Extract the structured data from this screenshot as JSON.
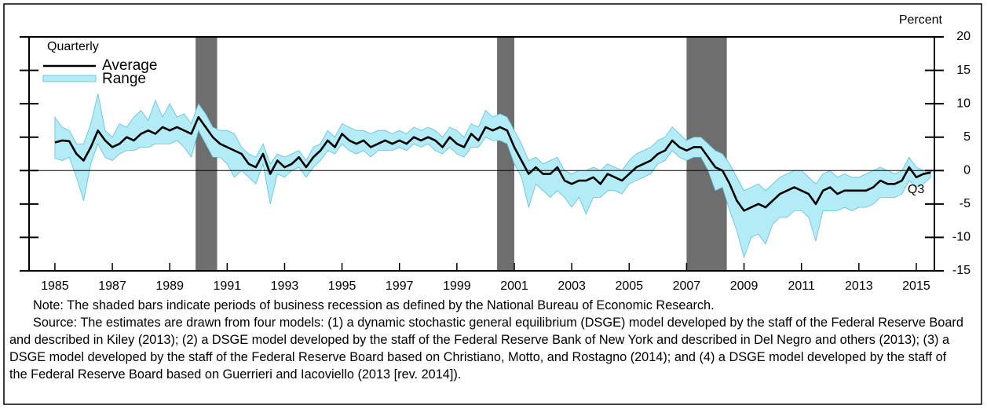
{
  "chart_data": {
    "type": "band-line",
    "y_axis_label": "Percent",
    "legend_title": "Quarterly",
    "annotation": "Q3",
    "x": [
      1985,
      1985.25,
      1985.5,
      1985.75,
      1986,
      1986.25,
      1986.5,
      1986.75,
      1987,
      1987.25,
      1987.5,
      1987.75,
      1988,
      1988.25,
      1988.5,
      1988.75,
      1989,
      1989.25,
      1989.5,
      1989.75,
      1990,
      1990.25,
      1990.5,
      1990.75,
      1991,
      1991.25,
      1991.5,
      1991.75,
      1992,
      1992.25,
      1992.5,
      1992.75,
      1993,
      1993.25,
      1993.5,
      1993.75,
      1994,
      1994.25,
      1994.5,
      1994.75,
      1995,
      1995.25,
      1995.5,
      1995.75,
      1996,
      1996.25,
      1996.5,
      1996.75,
      1997,
      1997.25,
      1997.5,
      1997.75,
      1998,
      1998.25,
      1998.5,
      1998.75,
      1999,
      1999.25,
      1999.5,
      1999.75,
      2000,
      2000.25,
      2000.5,
      2000.75,
      2001,
      2001.25,
      2001.5,
      2001.75,
      2002,
      2002.25,
      2002.5,
      2002.75,
      2003,
      2003.25,
      2003.5,
      2003.75,
      2004,
      2004.25,
      2004.5,
      2004.75,
      2005,
      2005.25,
      2005.5,
      2005.75,
      2006,
      2006.25,
      2006.5,
      2006.75,
      2007,
      2007.25,
      2007.5,
      2007.75,
      2008,
      2008.25,
      2008.5,
      2008.75,
      2009,
      2009.25,
      2009.5,
      2009.75,
      2010,
      2010.25,
      2010.5,
      2010.75,
      2011,
      2011.25,
      2011.5,
      2011.75,
      2012,
      2012.25,
      2012.5,
      2012.75,
      2013,
      2013.25,
      2013.5,
      2013.75,
      2014,
      2014.25,
      2014.5,
      2014.75,
      2015,
      2015.25,
      2015.5
    ],
    "series": [
      {
        "name": "Average",
        "color": "#000000",
        "values": [
          4.2,
          4.5,
          4.4,
          2.5,
          1.5,
          3.5,
          6,
          4.5,
          3.5,
          4,
          5,
          4.5,
          5.5,
          6,
          5.5,
          6.5,
          6,
          6.5,
          6,
          5.5,
          8,
          6.5,
          5,
          4,
          3.5,
          3,
          2.5,
          1,
          0.5,
          2.5,
          -0.5,
          1.5,
          0.5,
          1,
          2,
          0.5,
          2,
          3,
          4.5,
          3.5,
          5.5,
          4.5,
          4,
          4.5,
          3.5,
          4,
          4.5,
          4,
          4.5,
          4,
          5,
          4.5,
          5,
          4.5,
          3.5,
          5,
          4,
          3.5,
          5.5,
          4.5,
          6.5,
          6,
          6.5,
          6,
          3.5,
          1.5,
          -0.5,
          0.5,
          -0.5,
          -0.5,
          0.5,
          -1.5,
          -2,
          -1.5,
          -1.5,
          -1,
          -2,
          -0.5,
          -1,
          -1.5,
          -0.5,
          0.5,
          1,
          1.5,
          2.5,
          3,
          4.5,
          3.5,
          3,
          3.5,
          3.5,
          2,
          0.5,
          0,
          -2,
          -4.5,
          -6,
          -5.5,
          -5,
          -5.5,
          -4.5,
          -3.5,
          -3,
          -2.5,
          -3,
          -3.5,
          -5,
          -3,
          -2.5,
          -3.5,
          -3,
          -3,
          -3,
          -3,
          -2.5,
          -1.5,
          -2,
          -2,
          -1.5,
          0.5,
          -1,
          -0.5,
          -0.3
        ]
      },
      {
        "name": "Range",
        "color": "#b3ebf7",
        "high": [
          8,
          6.5,
          6,
          4,
          4,
          7,
          11.5,
          6,
          5,
          7,
          6.5,
          8,
          9,
          7.5,
          10.5,
          8,
          10,
          8,
          8.5,
          7,
          10,
          8.5,
          6.5,
          6,
          6,
          5.5,
          3.5,
          2.5,
          2,
          4,
          1,
          2.5,
          2,
          2.5,
          3,
          1.5,
          3.5,
          4,
          6,
          5,
          7,
          6.5,
          6,
          6,
          5.5,
          6,
          6,
          5.5,
          6,
          5.5,
          6.5,
          6,
          6.5,
          6,
          5,
          6.5,
          6,
          5,
          7,
          6.5,
          9,
          8,
          8.5,
          8,
          6,
          4,
          1.5,
          2,
          1,
          1.5,
          2,
          0,
          -0.5,
          0,
          0,
          0.5,
          0,
          1,
          0.5,
          0,
          1.5,
          2.5,
          3,
          3.5,
          4.5,
          5,
          6.5,
          5.5,
          4.5,
          5,
          5,
          4,
          3,
          2.5,
          1,
          -1,
          -3,
          -2.5,
          -2,
          -3,
          -2,
          -1,
          -0.5,
          0,
          0,
          -1,
          -2,
          -0.5,
          0,
          -1,
          -0.5,
          -1,
          -1,
          -0.5,
          0,
          0.5,
          0,
          -0.5,
          0,
          2,
          0.5,
          0,
          0
        ],
        "low": [
          1.8,
          1.5,
          2,
          -1,
          -4.5,
          1,
          4,
          2,
          1.5,
          2.5,
          3,
          3,
          3.5,
          3.5,
          4,
          4,
          4,
          4.5,
          3.5,
          2,
          6,
          4,
          2,
          2,
          1,
          -1,
          0,
          -1,
          -2,
          1,
          -5,
          -0.5,
          -1,
          0,
          0.5,
          -1,
          0.5,
          1.5,
          3,
          2.5,
          4,
          3,
          2.5,
          3,
          2,
          3,
          3,
          3,
          3.5,
          3,
          4,
          3.5,
          4,
          3,
          2.5,
          3.5,
          2.5,
          2,
          3.5,
          3.5,
          5,
          4.5,
          4.5,
          4,
          1,
          -1,
          -5.5,
          -2,
          -3,
          -4,
          -3,
          -4,
          -5.5,
          -4,
          -6.5,
          -4,
          -4,
          -3,
          -3,
          -3.5,
          -2,
          -1.5,
          -1,
          -0.5,
          1,
          1.5,
          3,
          2,
          1.5,
          2,
          2,
          0,
          -3,
          -2.5,
          -6,
          -9,
          -13,
          -10,
          -9.5,
          -11,
          -8,
          -7,
          -7,
          -6,
          -6,
          -7,
          -10.5,
          -6,
          -6,
          -6,
          -5.5,
          -6,
          -5.5,
          -5.5,
          -5,
          -4,
          -4,
          -4,
          -3.5,
          -1.5,
          -2.5,
          -2,
          -1
        ]
      }
    ],
    "recessions": [
      [
        1989.9,
        1990.65
      ],
      [
        2000.4,
        2001.0
      ],
      [
        2007.0,
        2008.4
      ]
    ],
    "recession_color": "#6e6e6e",
    "xlim": [
      1984.1,
      2015.63
    ],
    "xticks": [
      1985,
      1987,
      1989,
      1991,
      1993,
      1995,
      1997,
      1999,
      2001,
      2003,
      2005,
      2007,
      2009,
      2011,
      2013,
      2015
    ],
    "ylim": [
      -15,
      20
    ],
    "yticks": [
      -15,
      -10,
      -5,
      0,
      5,
      10,
      15,
      20
    ],
    "zero_line": true,
    "note": "Note:  The shaded bars indicate periods of business recession as defined by the National Bureau of Economic Research.",
    "source": "Source:  The estimates are drawn from four models: (1) a dynamic stochastic general equilibrium (DSGE) model developed by the staff of the Federal Reserve Board and described in Kiley (2013); (2) a DSGE model developed by the staff of the Federal Reserve Bank of New York and described in Del Negro and others (2013); (3) a DSGE model developed by the staff of the Federal Reserve Board based on Christiano, Motto, and Rostagno (2014); and (4) a DSGE model developed by the staff of the Federal Reserve Board based on Guerrieri and Iacoviello (2013 [rev. 2014])."
  }
}
